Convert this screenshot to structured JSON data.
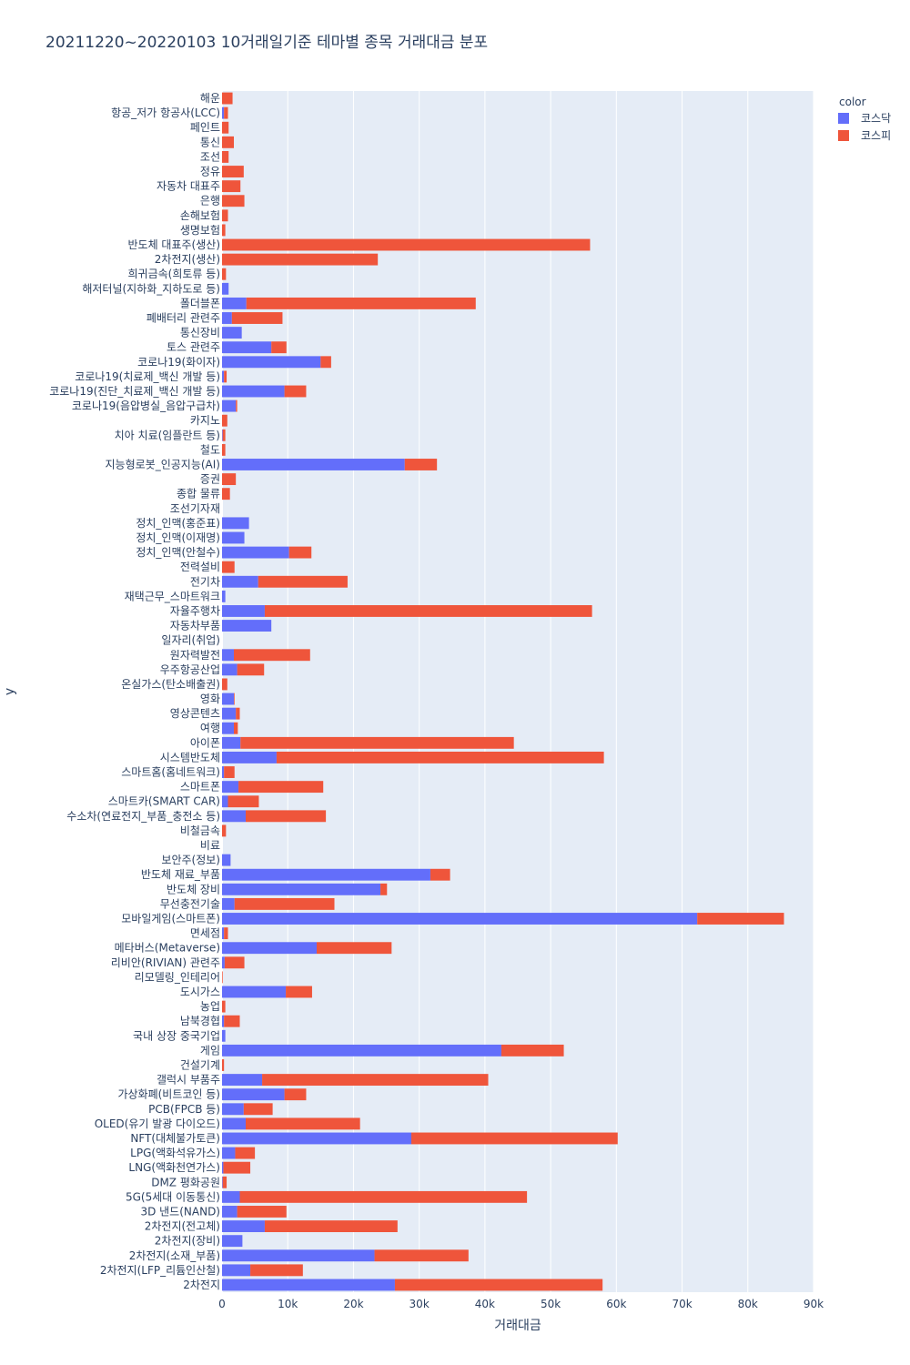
{
  "chart_data": {
    "type": "bar",
    "orientation": "horizontal",
    "stacked": true,
    "title": "20211220~20220103 10거래일기준 테마별 종목 거래대금 분포",
    "xlabel": "거래대금",
    "ylabel": "y",
    "xlim": [
      0,
      90000
    ],
    "x_ticks": [
      {
        "value": 0,
        "label": "0"
      },
      {
        "value": 10000,
        "label": "10k"
      },
      {
        "value": 20000,
        "label": "20k"
      },
      {
        "value": 30000,
        "label": "30k"
      },
      {
        "value": 40000,
        "label": "40k"
      },
      {
        "value": 50000,
        "label": "50k"
      },
      {
        "value": 60000,
        "label": "60k"
      },
      {
        "value": 70000,
        "label": "70k"
      },
      {
        "value": 80000,
        "label": "80k"
      },
      {
        "value": 90000,
        "label": "90k"
      }
    ],
    "grid": true,
    "legend": {
      "title": "color",
      "position": "top-right"
    },
    "categories": [
      "해운",
      "항공_저가 항공사(LCC)",
      "페인트",
      "통신",
      "조선",
      "정유",
      "자동차 대표주",
      "은행",
      "손해보험",
      "생명보험",
      "반도체 대표주(생산)",
      "2차전지(생산)",
      "희귀금속(희토류 등)",
      "해저터널(지하화_지하도로 등)",
      "폴더블폰",
      "폐배터리 관련주",
      "통신장비",
      "토스 관련주",
      "코로나19(화이자)",
      "코로나19(치료제_백신 개발 등)",
      "코로나19(진단_치료제_백신 개발 등)",
      "코로나19(음압병실_음압구급차)",
      "카지노",
      "치아 치료(임플란트 등)",
      "철도",
      "지능형로봇_인공지능(AI)",
      "증권",
      "종합 물류",
      "조선기자재",
      "정치_인맥(홍준표)",
      "정치_인맥(이재명)",
      "정치_인맥(안철수)",
      "전력설비",
      "전기차",
      "재택근무_스마트워크",
      "자율주행차",
      "자동차부품",
      "일자리(취업)",
      "원자력발전",
      "우주항공산업",
      "온실가스(탄소배출권)",
      "영화",
      "영상콘텐츠",
      "여행",
      "아이폰",
      "시스템반도체",
      "스마트홈(홈네트워크)",
      "스마트폰",
      "스마트카(SMART CAR)",
      "수소차(연료전지_부품_충전소 등)",
      "비철금속",
      "비료",
      "보안주(정보)",
      "반도체 재료_부품",
      "반도체 장비",
      "무선충전기술",
      "모바일게임(스마트폰)",
      "면세점",
      "메타버스(Metaverse)",
      "리비안(RIVIAN) 관련주",
      "리모델링_인테리어",
      "도시가스",
      "농업",
      "남북경협",
      "국내 상장 중국기업",
      "게임",
      "건설기계",
      "갤럭시 부품주",
      "가상화폐(비트코인 등)",
      "PCB(FPCB 등)",
      "OLED(유기 발광 다이오드)",
      "NFT(대체불가토큰)",
      "LPG(액화석유가스)",
      "LNG(액화천연가스)",
      "DMZ 평화공원",
      "5G(5세대 이동통신)",
      "3D 낸드(NAND)",
      "2차전지(전고체)",
      "2차전지(장비)",
      "2차전지(소재_부품)",
      "2차전지(LFP_리튬인산철)",
      "2차전지"
    ],
    "series": [
      {
        "name": "코스닥",
        "color": "#636efa",
        "values": [
          0,
          0.3,
          0,
          0,
          0,
          0,
          0,
          0,
          0,
          0,
          0,
          0,
          0,
          1,
          3.7,
          1.5,
          3,
          7.5,
          15,
          0.3,
          9.5,
          2.1,
          0,
          0.1,
          0,
          27.8,
          0,
          0,
          0,
          4.1,
          3.4,
          10.2,
          0,
          5.5,
          0.5,
          6.5,
          7.5,
          0,
          1.8,
          2.3,
          0,
          1.8,
          2.1,
          1.8,
          2.8,
          8.3,
          0.3,
          2.5,
          0.9,
          3.6,
          0,
          0,
          1.3,
          31.7,
          24.1,
          1.9,
          72.3,
          0.3,
          14.4,
          0.4,
          0,
          9.7,
          0,
          0.3,
          0.5,
          42.5,
          0,
          6.1,
          9.5,
          3.3,
          3.6,
          28.8,
          2,
          0.2,
          0.1,
          2.7,
          2.3,
          6.5,
          3.1,
          23.2,
          4.3,
          26.3
        ]
      },
      {
        "name": "코스피",
        "color": "#ef553b",
        "values": [
          1.6,
          0.6,
          1,
          1.8,
          1,
          3.3,
          2.8,
          3.4,
          0.9,
          0.5,
          56,
          23.7,
          0.6,
          0,
          34.9,
          7.7,
          0,
          2.3,
          1.6,
          0.4,
          3.3,
          0.2,
          0.8,
          0.4,
          0.5,
          4.9,
          2.1,
          1.2,
          0,
          0,
          0,
          3.4,
          1.9,
          13.6,
          0,
          49.8,
          0,
          0,
          11.6,
          4.1,
          0.8,
          0.1,
          0.6,
          0.6,
          41.6,
          49.8,
          1.6,
          12.9,
          4.7,
          12.2,
          0.6,
          0,
          0,
          3,
          1,
          15.2,
          13.2,
          0.6,
          11.4,
          3,
          0.1,
          4,
          0.5,
          2.4,
          0,
          9.5,
          0.3,
          34.4,
          3.3,
          4.4,
          17.4,
          31.4,
          3,
          4.1,
          0.6,
          43.7,
          7.5,
          20.2,
          0,
          14.3,
          8,
          31.6
        ]
      }
    ]
  }
}
